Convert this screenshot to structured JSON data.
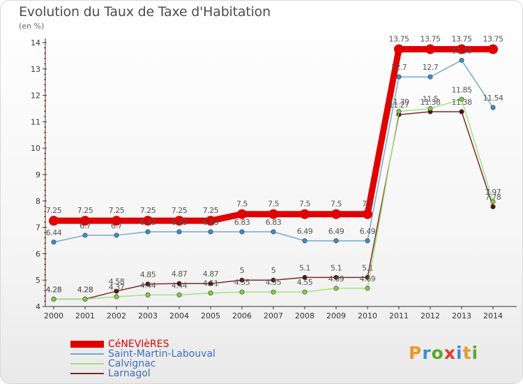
{
  "header": {
    "title": "Evolution du Taux de Taxe d'Habitation",
    "subtitle": "(en %)"
  },
  "brand": {
    "letters": [
      "P",
      "r",
      "o",
      "x",
      "i",
      "t",
      "i"
    ],
    "colors": [
      "#e89a2a",
      "#3a8fd0",
      "#5aa82e",
      "#e23a2a",
      "#3a8fd0",
      "#e89a2a",
      "#5aa82e"
    ]
  },
  "chart_data": {
    "type": "line",
    "title": "Evolution du Taux de Taxe d'Habitation",
    "subtitle": "(en %)",
    "xlabel": "",
    "ylabel": "",
    "x": [
      "2000",
      "2001",
      "2002",
      "2003",
      "2004",
      "2005",
      "2006",
      "2007",
      "2008",
      "2009",
      "2010",
      "2011",
      "2012",
      "2013",
      "2014"
    ],
    "ylim": [
      4,
      14
    ],
    "yticks": [
      4,
      5,
      6,
      7,
      8,
      9,
      10,
      11,
      12,
      13,
      14
    ],
    "grid": false,
    "legend_position": "bottom-left",
    "series": [
      {
        "name": "CéNEVIèRES",
        "color": "#e00000",
        "marker_color": "#e00000",
        "values": [
          7.25,
          7.25,
          7.25,
          7.25,
          7.25,
          7.25,
          7.5,
          7.5,
          7.5,
          7.5,
          7.5,
          13.75,
          13.75,
          13.75,
          13.75
        ],
        "labels": [
          "7.25",
          "7.25",
          "7.25",
          "7.25",
          "7.25",
          "7.25",
          "7.5",
          "7.5",
          "7.5",
          "7.5",
          "7.5",
          "13.75",
          "13.75",
          "13.75",
          "13.75"
        ]
      },
      {
        "name": "Saint-Martin-Labouval",
        "color": "#78a8cc",
        "marker_color": "#3a8fd0",
        "values": [
          6.44,
          6.7,
          6.7,
          6.83,
          6.83,
          6.83,
          6.83,
          6.83,
          6.49,
          6.49,
          6.49,
          12.7,
          12.7,
          13.33,
          11.54
        ],
        "labels": [
          "6.44",
          "6.7",
          "6.7",
          "6.83",
          "6.83",
          "6.83",
          "6.83",
          "6.83",
          "6.49",
          "6.49",
          "6.49",
          "12.7",
          "12.7",
          "13.33",
          "11.54"
        ]
      },
      {
        "name": "Calvignac",
        "color": "#a8e080",
        "marker_color": "#7ed03a",
        "values": [
          4.28,
          4.28,
          4.37,
          4.44,
          4.44,
          4.51,
          4.55,
          4.55,
          4.55,
          4.69,
          4.69,
          11.39,
          11.5,
          11.85,
          7.97
        ],
        "labels": [
          "4.28",
          "4.28",
          "4.37",
          "4.44",
          "4.44",
          "4.51",
          "4.55",
          "4.55",
          "4.55",
          "4.69",
          "4.69",
          "11.39",
          "11.5",
          "11.85",
          "7.97"
        ]
      },
      {
        "name": "Larnagol",
        "color": "#7a2a2a",
        "marker_color": "#5a1010",
        "values": [
          4.28,
          4.28,
          4.58,
          4.85,
          4.87,
          4.87,
          5.0,
          5.0,
          5.1,
          5.1,
          5.1,
          11.27,
          11.38,
          11.38,
          7.78
        ],
        "labels": [
          "4.28",
          "4.28",
          "4.58",
          "4.85",
          "4.87",
          "4.87",
          "5",
          "5",
          "5.1",
          "5.1",
          "5.1",
          "11.27",
          "11.38",
          "11.38",
          "7.78"
        ]
      }
    ]
  }
}
